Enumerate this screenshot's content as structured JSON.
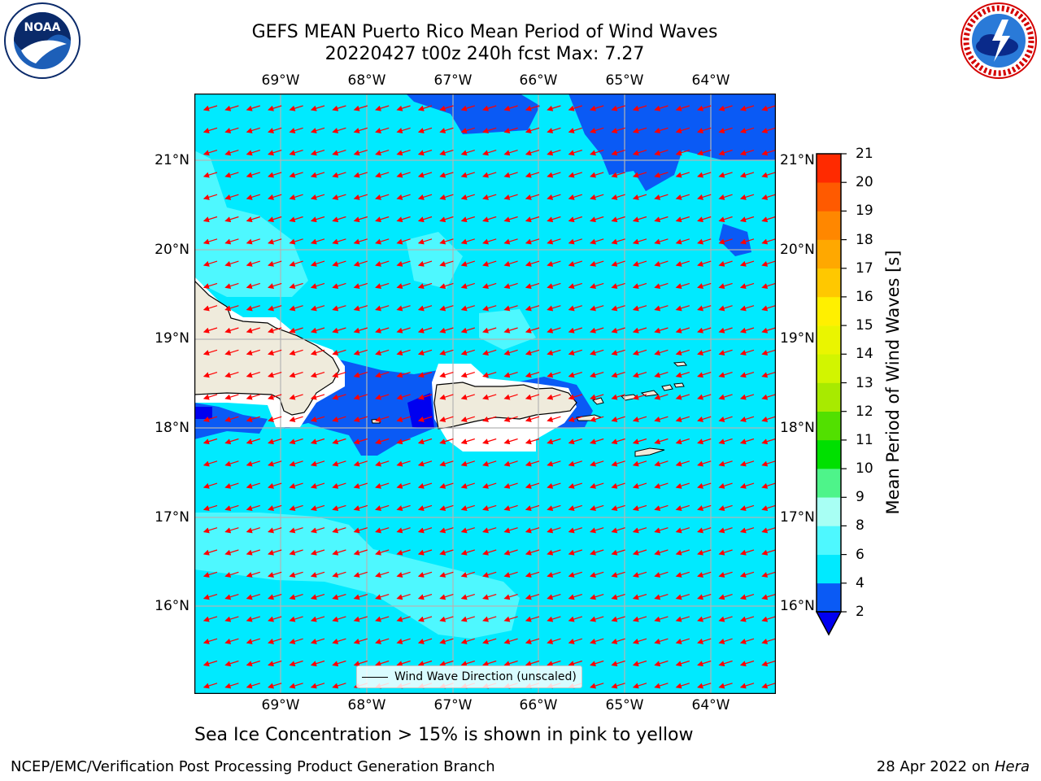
{
  "title": {
    "line1": "GEFS MEAN Puerto Rico Mean Period of Wind Waves",
    "line2": "20220427 t00z 240h fcst   Max: 7.27"
  },
  "logos": {
    "left": "noaa-logo",
    "right": "national-weather-service-logo"
  },
  "map": {
    "lon_labels": [
      "69°W",
      "68°W",
      "67°W",
      "66°W",
      "65°W",
      "64°W"
    ],
    "lat_labels": [
      "21°N",
      "20°N",
      "19°N",
      "18°N",
      "17°N",
      "16°N"
    ],
    "lon_range": [
      -70.0,
      -63.25
    ],
    "lat_range": [
      15.0,
      21.75
    ],
    "land_color": "#efebdc",
    "arrow_color": "#ff0000",
    "grid_color": "#b4b4b4",
    "vector_direction": "toward-west-southwest",
    "legend_label": "Wind Wave Direction (unscaled)"
  },
  "colorbar": {
    "label": "Mean Period of Wind Waves [s]",
    "ticks": [
      "2",
      "4",
      "6",
      "8",
      "9",
      "10",
      "11",
      "12",
      "13",
      "14",
      "15",
      "16",
      "17",
      "18",
      "19",
      "20",
      "21"
    ],
    "colors": [
      "#0a5af5",
      "#00eaff",
      "#4ef8ff",
      "#a8fff4",
      "#4ef48a",
      "#00e000",
      "#52e000",
      "#a8ea00",
      "#d2f500",
      "#eaf500",
      "#fff000",
      "#ffc800",
      "#ffa800",
      "#ff8700",
      "#ff5a00",
      "#ff2a00"
    ],
    "under_color": "#0000f0"
  },
  "notes": {
    "sea_ice": "Sea Ice Concentration > 15% is shown in pink to yellow",
    "branch": "NCEP/EMC/Verification Post Processing Product Generation Branch",
    "date": "28 Apr 2022 on ",
    "machine": "Hera"
  }
}
